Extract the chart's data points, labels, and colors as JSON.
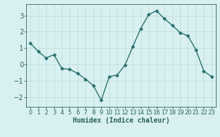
{
  "x": [
    0,
    1,
    2,
    3,
    4,
    5,
    6,
    7,
    8,
    9,
    10,
    11,
    12,
    13,
    14,
    15,
    16,
    17,
    18,
    19,
    20,
    21,
    22,
    23
  ],
  "y": [
    1.3,
    0.8,
    0.4,
    0.6,
    -0.25,
    -0.3,
    -0.55,
    -0.9,
    -1.3,
    -2.2,
    -0.75,
    -0.65,
    -0.05,
    1.1,
    2.2,
    3.05,
    3.3,
    2.8,
    2.4,
    1.95,
    1.75,
    0.9,
    -0.4,
    -0.75
  ],
  "line_color": "#2a6e6e",
  "marker": "D",
  "marker_size": 2.5,
  "line_width": 1.0,
  "bg_color": "#d8f0f0",
  "grid_color": "#c0dcdc",
  "tick_color": "#2a5f5f",
  "xlabel": "Humidex (Indice chaleur)",
  "xlim": [
    -0.5,
    23.5
  ],
  "ylim": [
    -2.6,
    3.7
  ],
  "yticks": [
    -2,
    -1,
    0,
    1,
    2,
    3
  ],
  "xticks": [
    0,
    1,
    2,
    3,
    4,
    5,
    6,
    7,
    8,
    9,
    10,
    11,
    12,
    13,
    14,
    15,
    16,
    17,
    18,
    19,
    20,
    21,
    22,
    23
  ],
  "xlabel_fontsize": 7.0,
  "tick_fontsize": 6.0,
  "ytick_fontsize": 7.0
}
